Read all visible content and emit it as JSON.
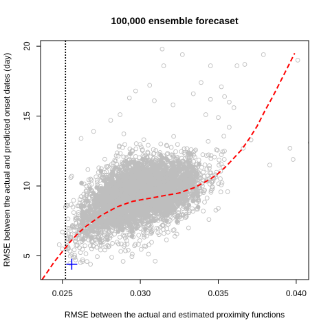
{
  "chart_data": {
    "type": "scatter",
    "title": "100,000 ensemble forecaset",
    "xlabel": "RMSE between the actual and estimated proximity functions",
    "ylabel": "RMSE between the actual and predicted onset dates (day)",
    "xlim": [
      0.0236,
      0.0408
    ],
    "ylim": [
      3.3,
      20.4
    ],
    "x_ticks": [
      0.025,
      0.03,
      0.035,
      0.04
    ],
    "x_tick_labels": [
      "0.025",
      "0.030",
      "0.035",
      "0.040"
    ],
    "y_ticks": [
      5,
      10,
      15,
      20
    ],
    "y_tick_labels": [
      "5",
      "10",
      "15",
      "20"
    ],
    "grid": false,
    "colors": {
      "points": "#bebebe",
      "trend": "#ff0000",
      "marker": "#0000ff",
      "vline": "#000000"
    },
    "cloud": {
      "n_points": 100000,
      "x_range": [
        0.0252,
        0.0355
      ],
      "y_range": [
        4.4,
        13.8
      ]
    },
    "outliers": [
      [
        0.0379,
        19.4
      ],
      [
        0.0401,
        19.0
      ],
      [
        0.0398,
        11.9
      ],
      [
        0.0409,
        13.1
      ],
      [
        0.0396,
        12.7
      ],
      [
        0.0383,
        11.5
      ],
      [
        0.0345,
        18.6
      ],
      [
        0.0367,
        18.7
      ],
      [
        0.0362,
        18.6
      ],
      [
        0.0357,
        16.0
      ],
      [
        0.0354,
        16.4
      ],
      [
        0.0352,
        17.1
      ],
      [
        0.0345,
        16.2
      ],
      [
        0.0342,
        15.1
      ],
      [
        0.0327,
        19.4
      ],
      [
        0.0314,
        19.8
      ],
      [
        0.0315,
        18.6
      ],
      [
        0.0306,
        17.2
      ],
      [
        0.0297,
        16.8
      ],
      [
        0.0293,
        16.3
      ],
      [
        0.0287,
        15.1
      ],
      [
        0.0281,
        14.7
      ],
      [
        0.027,
        13.9
      ],
      [
        0.0262,
        13.4
      ],
      [
        0.035,
        14.9
      ],
      [
        0.036,
        15.6
      ],
      [
        0.0371,
        13.3
      ],
      [
        0.0366,
        12.7
      ],
      [
        0.0356,
        9.6
      ],
      [
        0.035,
        8.4
      ],
      [
        0.0344,
        7.6
      ],
      [
        0.0338,
        9.9
      ],
      [
        0.0357,
        14.2
      ],
      [
        0.0256,
        10.7
      ],
      [
        0.0252,
        8.5
      ],
      [
        0.025,
        6.7
      ],
      [
        0.0248,
        5.8
      ],
      [
        0.025,
        5.5
      ],
      [
        0.0263,
        4.6
      ],
      [
        0.0268,
        4.4
      ],
      [
        0.0321,
        15.8
      ],
      [
        0.0309,
        16.1
      ],
      [
        0.0334,
        16.6
      ],
      [
        0.0339,
        17.4
      ]
    ],
    "trend_line": {
      "style": "dashed",
      "x": [
        0.0237,
        0.0245,
        0.025,
        0.0255,
        0.026,
        0.0265,
        0.027,
        0.0275,
        0.028,
        0.0285,
        0.029,
        0.0295,
        0.03,
        0.0305,
        0.031,
        0.0315,
        0.032,
        0.0325,
        0.033,
        0.0335,
        0.034,
        0.0345,
        0.035,
        0.0355,
        0.036,
        0.0365,
        0.037,
        0.0375,
        0.038,
        0.0385,
        0.039,
        0.0395,
        0.0399
      ],
      "y": [
        3.3,
        4.6,
        5.3,
        6.0,
        6.6,
        7.1,
        7.5,
        7.9,
        8.2,
        8.5,
        8.7,
        8.9,
        9.0,
        9.1,
        9.2,
        9.3,
        9.4,
        9.5,
        9.7,
        9.9,
        10.2,
        10.5,
        10.9,
        11.4,
        12.0,
        12.6,
        13.4,
        14.3,
        15.4,
        16.4,
        17.5,
        18.6,
        19.5
      ]
    },
    "vline": {
      "x": 0.0252,
      "style": "dotted"
    },
    "marker": {
      "x": 0.0256,
      "y": 4.4,
      "shape": "plus"
    }
  }
}
